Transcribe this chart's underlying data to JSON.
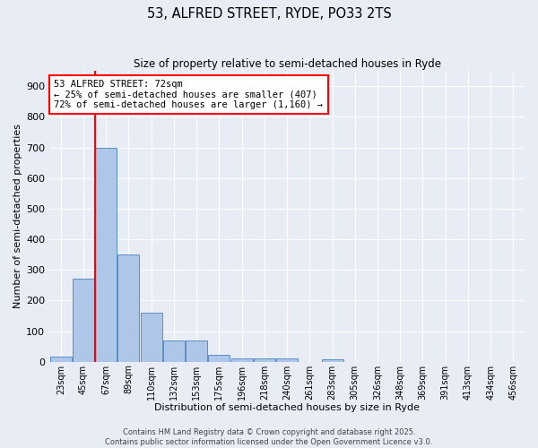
{
  "title": "53, ALFRED STREET, RYDE, PO33 2TS",
  "subtitle": "Size of property relative to semi-detached houses in Ryde",
  "xlabel": "Distribution of semi-detached houses by size in Ryde",
  "ylabel": "Number of semi-detached properties",
  "bins": [
    "23sqm",
    "45sqm",
    "67sqm",
    "89sqm",
    "110sqm",
    "132sqm",
    "153sqm",
    "175sqm",
    "196sqm",
    "218sqm",
    "240sqm",
    "261sqm",
    "283sqm",
    "305sqm",
    "326sqm",
    "348sqm",
    "369sqm",
    "391sqm",
    "413sqm",
    "434sqm",
    "456sqm"
  ],
  "values": [
    18,
    270,
    700,
    350,
    160,
    70,
    70,
    22,
    12,
    12,
    10,
    0,
    8,
    0,
    0,
    0,
    0,
    0,
    0,
    0,
    0
  ],
  "bar_color": "#aec6e8",
  "bar_edge_color": "#5a8fc2",
  "red_line_index": 2,
  "annotation_text": "53 ALFRED STREET: 72sqm\n← 25% of semi-detached houses are smaller (407)\n72% of semi-detached houses are larger (1,160) →",
  "annotation_box_color": "white",
  "annotation_box_edge_color": "red",
  "ylim": [
    0,
    950
  ],
  "yticks": [
    0,
    100,
    200,
    300,
    400,
    500,
    600,
    700,
    800,
    900
  ],
  "background_color": "#e8ecf5",
  "grid_color": "white",
  "footer_line1": "Contains HM Land Registry data © Crown copyright and database right 2025.",
  "footer_line2": "Contains public sector information licensed under the Open Government Licence v3.0."
}
